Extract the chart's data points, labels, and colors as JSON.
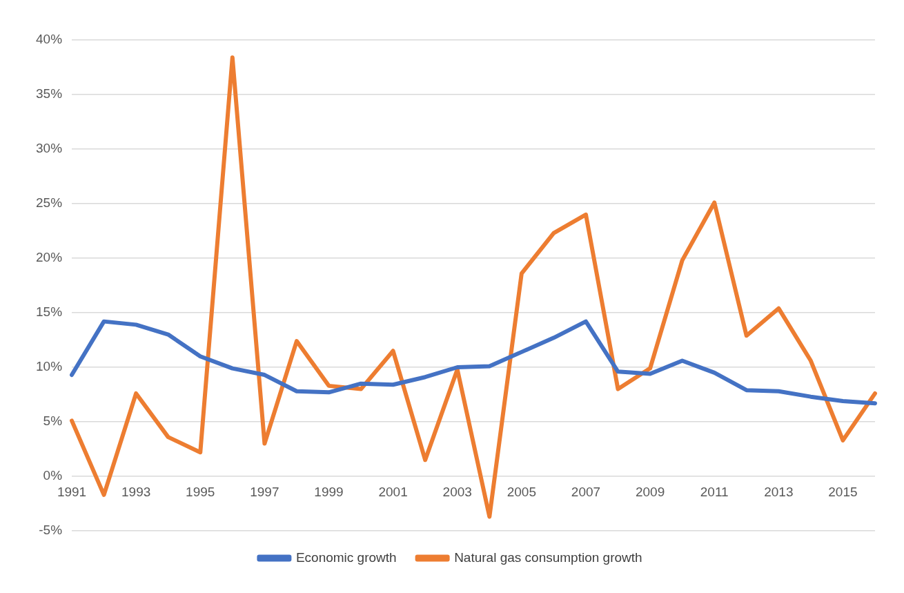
{
  "chart_data": {
    "type": "line",
    "categories": [
      "1991",
      null,
      "1993",
      null,
      "1995",
      null,
      "1997",
      null,
      "1999",
      null,
      "2001",
      null,
      "2003",
      null,
      "2005",
      null,
      "2007",
      null,
      "2009",
      null,
      "2011",
      null,
      "2013",
      null,
      "2015",
      null
    ],
    "series": [
      {
        "name": "Economic growth",
        "color": "#4472c4",
        "values": [
          9.3,
          14.2,
          13.9,
          13.0,
          11.0,
          9.9,
          9.3,
          7.8,
          7.7,
          8.5,
          8.4,
          9.1,
          10.0,
          10.1,
          11.4,
          12.7,
          14.2,
          9.6,
          9.4,
          10.6,
          9.5,
          7.9,
          7.8,
          7.3,
          6.9,
          6.7
        ]
      },
      {
        "name": "Natural gas consumption growth",
        "color": "#ed7d31",
        "values": [
          5.1,
          -1.7,
          7.6,
          3.6,
          2.2,
          38.4,
          3.0,
          12.4,
          8.3,
          8.0,
          11.5,
          1.5,
          9.8,
          -3.7,
          18.6,
          22.3,
          24.0,
          8.0,
          9.9,
          19.8,
          25.1,
          12.9,
          15.4,
          10.6,
          3.3,
          7.6
        ]
      }
    ],
    "ylim": [
      -5,
      40
    ],
    "yticks": [
      {
        "value": -5,
        "label": "-5%"
      },
      {
        "value": 0,
        "label": "0%"
      },
      {
        "value": 5,
        "label": "5%"
      },
      {
        "value": 10,
        "label": "10%"
      },
      {
        "value": 15,
        "label": "15%"
      },
      {
        "value": 20,
        "label": "20%"
      },
      {
        "value": 25,
        "label": "25%"
      },
      {
        "value": 30,
        "label": "30%"
      },
      {
        "value": 35,
        "label": "35%"
      },
      {
        "value": 40,
        "label": "40%"
      }
    ],
    "grid": "y",
    "legend": "bottom",
    "marker": "none",
    "line_style": "solid"
  }
}
